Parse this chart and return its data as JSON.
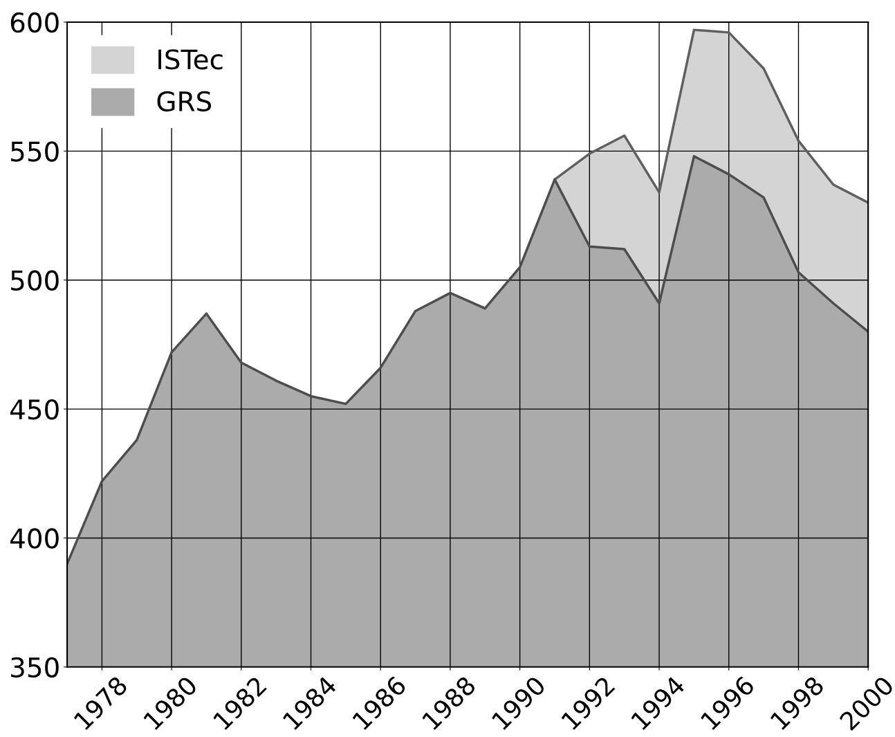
{
  "chart_data": {
    "type": "area",
    "x": [
      1977,
      1978,
      1979,
      1980,
      1981,
      1982,
      1983,
      1984,
      1985,
      1986,
      1987,
      1988,
      1989,
      1990,
      1991,
      1992,
      1993,
      1994,
      1995,
      1996,
      1997,
      1998,
      1999,
      2000
    ],
    "series": [
      {
        "name": "ISTec",
        "color": "#d4d4d4",
        "x": [
          1991,
          1992,
          1993,
          1994,
          1995,
          1996,
          1997,
          1998,
          1999,
          2000
        ],
        "values": [
          539,
          549,
          556,
          534,
          597,
          596,
          582,
          554,
          537,
          530
        ]
      },
      {
        "name": "GRS",
        "color": "#ababab",
        "values": [
          390,
          422,
          438,
          472,
          487,
          468,
          461,
          455,
          452,
          466,
          488,
          495,
          489,
          505,
          539,
          513,
          512,
          491,
          548,
          541,
          532,
          503,
          491,
          480
        ]
      }
    ],
    "xlim": [
      1977,
      2000
    ],
    "xticks": [
      1978,
      1980,
      1982,
      1984,
      1986,
      1988,
      1990,
      1992,
      1994,
      1996,
      1998,
      2000
    ],
    "ylim": [
      350,
      600
    ],
    "yticks": [
      350,
      400,
      450,
      500,
      550,
      600
    ],
    "grid": true,
    "legend": "top left"
  }
}
